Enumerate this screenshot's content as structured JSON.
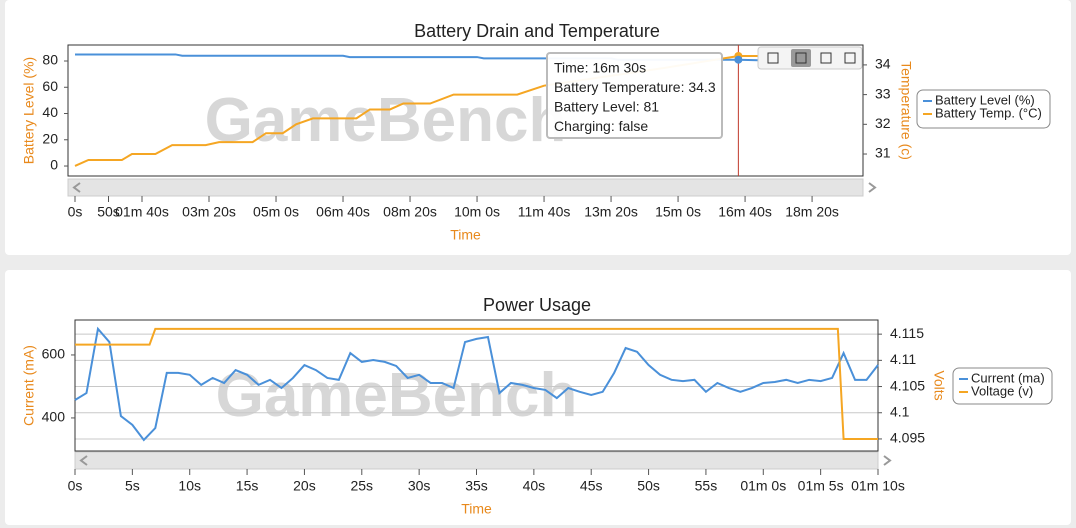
{
  "chart_data": [
    {
      "type": "line",
      "title": "Battery Drain and Temperature",
      "x_label": "Time",
      "y_label": "Battery Level (%)",
      "y2_label": "Temperature (c)",
      "watermark": "GameBench",
      "xlim": [
        0,
        1176
      ],
      "xticks": [
        {
          "value": 0,
          "label": "0s"
        },
        {
          "value": 50,
          "label": "50s"
        },
        {
          "value": 100,
          "label": "01m 40s"
        },
        {
          "value": 200,
          "label": "03m 20s"
        },
        {
          "value": 300,
          "label": "05m 0s"
        },
        {
          "value": 400,
          "label": "06m 40s"
        },
        {
          "value": 500,
          "label": "08m 20s"
        },
        {
          "value": 600,
          "label": "10m 0s"
        },
        {
          "value": 700,
          "label": "11m 40s"
        },
        {
          "value": 800,
          "label": "13m 20s"
        },
        {
          "value": 900,
          "label": "15m 0s"
        },
        {
          "value": 1000,
          "label": "16m 40s"
        },
        {
          "value": 1100,
          "label": "18m 20s"
        }
      ],
      "ylim": [
        -7.6,
        92.2
      ],
      "yticks": [
        0,
        20,
        40,
        60,
        80
      ],
      "y2lim": [
        30.26,
        34.67
      ],
      "y2ticks": [
        31,
        32,
        33,
        34
      ],
      "grid": false,
      "series": [
        {
          "name": "Battery Level (%)",
          "color": "#4a90d9",
          "axis": "y",
          "x": [
            0,
            150,
            160,
            400,
            410,
            600,
            610,
            800,
            810,
            990,
            1067
          ],
          "values": [
            85,
            85,
            84,
            84,
            83,
            83,
            82,
            82,
            81,
            81,
            80
          ]
        },
        {
          "name": "Battery Temp. (°C)",
          "color": "#f5a623",
          "axis": "y2",
          "x": [
            0,
            20,
            70,
            85,
            120,
            145,
            195,
            215,
            265,
            285,
            310,
            330,
            355,
            420,
            440,
            470,
            490,
            530,
            565,
            660,
            700,
            790,
            880,
            990,
            1067
          ],
          "values": [
            30.6,
            30.8,
            30.8,
            31.0,
            31.0,
            31.3,
            31.3,
            31.4,
            31.4,
            31.7,
            31.7,
            32.0,
            32.2,
            32.2,
            32.5,
            32.5,
            32.7,
            32.7,
            33.0,
            33.0,
            33.3,
            33.6,
            33.9,
            34.3,
            34.3
          ]
        }
      ],
      "tooltip": [
        "Time: 16m 30s",
        "Battery Temperature: 34.3",
        "Battery Level: 81",
        "Charging: false"
      ]
    },
    {
      "type": "line",
      "title": "Power Usage",
      "x_label": "Time",
      "y_label": "Current (mA)",
      "y2_label": "Volts",
      "watermark": "GameBench",
      "xlim": [
        0,
        70
      ],
      "xticks": [
        {
          "value": 0,
          "label": "0s"
        },
        {
          "value": 5,
          "label": "5s"
        },
        {
          "value": 10,
          "label": "10s"
        },
        {
          "value": 15,
          "label": "15s"
        },
        {
          "value": 20,
          "label": "20s"
        },
        {
          "value": 25,
          "label": "25s"
        },
        {
          "value": 30,
          "label": "30s"
        },
        {
          "value": 35,
          "label": "35s"
        },
        {
          "value": 40,
          "label": "40s"
        },
        {
          "value": 45,
          "label": "45s"
        },
        {
          "value": 50,
          "label": "50s"
        },
        {
          "value": 55,
          "label": "55s"
        },
        {
          "value": 60,
          "label": "01m 0s"
        },
        {
          "value": 65,
          "label": "01m 5s"
        },
        {
          "value": 70,
          "label": "01m 10s"
        }
      ],
      "ylim": [
        295,
        711
      ],
      "yticks": [
        400,
        600
      ],
      "y2lim": [
        4.0927,
        4.1177
      ],
      "y2ticks": [
        4.095,
        4.1,
        4.105,
        4.11,
        4.115
      ],
      "grid": true,
      "series": [
        {
          "name": "Current (ma)",
          "color": "#4a90d9",
          "axis": "y",
          "x": [
            0,
            1,
            2,
            3,
            4,
            5,
            6,
            7,
            8,
            9,
            10,
            11,
            12,
            13,
            14,
            15,
            16,
            17,
            18,
            19,
            20,
            21,
            22,
            23,
            24,
            25,
            26,
            27,
            28,
            29,
            30,
            31,
            32,
            33,
            34,
            35,
            36,
            37,
            38,
            39,
            40,
            41,
            42,
            43,
            44,
            45,
            46,
            47,
            48,
            49,
            50,
            51,
            52,
            53,
            54,
            55,
            56,
            57,
            58,
            59,
            60,
            61,
            62,
            63,
            64,
            65,
            66,
            67,
            68,
            69,
            70
          ],
          "values": [
            457,
            479,
            683,
            641,
            406,
            378,
            330,
            368,
            543,
            543,
            537,
            505,
            527,
            511,
            552,
            537,
            505,
            521,
            495,
            527,
            568,
            552,
            527,
            521,
            606,
            578,
            584,
            578,
            565,
            527,
            537,
            511,
            511,
            495,
            641,
            651,
            657,
            479,
            511,
            505,
            495,
            489,
            463,
            495,
            483,
            473,
            483,
            543,
            622,
            610,
            568,
            537,
            521,
            517,
            521,
            483,
            511,
            495,
            483,
            495,
            511,
            514,
            521,
            511,
            521,
            517,
            527,
            606,
            521,
            521,
            568
          ]
        },
        {
          "name": "Voltage (v)",
          "color": "#f5a623",
          "axis": "y2",
          "x": [
            0,
            6.5,
            7,
            66.5,
            67,
            70
          ],
          "values": [
            4.113,
            4.113,
            4.116,
            4.116,
            4.095,
            4.095
          ]
        }
      ]
    }
  ]
}
